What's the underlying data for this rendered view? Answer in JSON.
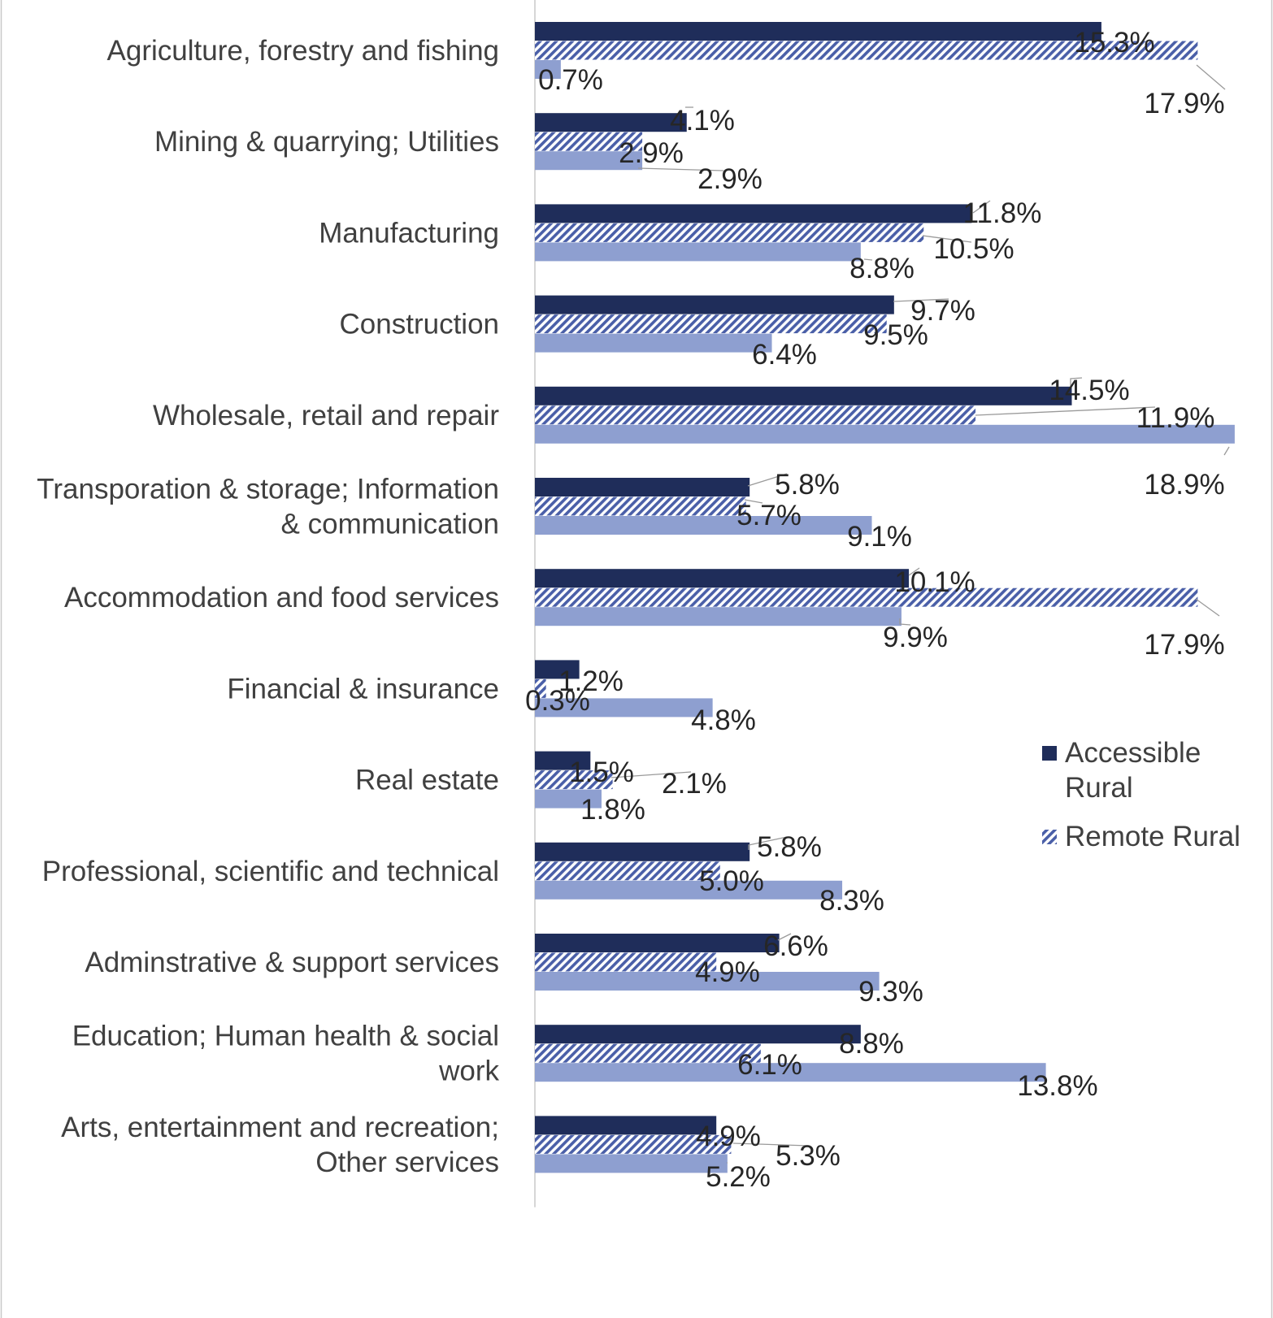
{
  "chart_data": {
    "type": "bar",
    "orientation": "horizontal",
    "categories": [
      "Agriculture, forestry and fishing",
      "Mining & quarrying; Utilities",
      "Manufacturing",
      "Construction",
      "Wholesale, retail and repair",
      "Transporation & storage; Information & communication",
      "Accommodation and food services",
      "Financial & insurance",
      "Real estate",
      "Professional, scientific and technical",
      "Adminstrative & support services",
      "Education; Human health & social work",
      "Arts, entertainment and recreation; Other services"
    ],
    "category_lines": [
      [
        "Agriculture, forestry and fishing"
      ],
      [
        "Mining & quarrying; Utilities"
      ],
      [
        "Manufacturing"
      ],
      [
        "Construction"
      ],
      [
        "Wholesale, retail and repair"
      ],
      [
        "Transporation & storage; Information",
        "& communication"
      ],
      [
        "Accommodation and food services"
      ],
      [
        "Financial & insurance"
      ],
      [
        "Real estate"
      ],
      [
        "Professional, scientific and technical"
      ],
      [
        "Adminstrative & support services"
      ],
      [
        "Education; Human health & social",
        "work"
      ],
      [
        "Arts, entertainment and recreation;",
        "Other services"
      ]
    ],
    "series": [
      {
        "name": "Accessible Rural",
        "color": "#1f2d5a",
        "pattern": "solid",
        "values": [
          15.3,
          4.1,
          11.8,
          9.7,
          14.5,
          5.8,
          10.1,
          1.2,
          1.5,
          5.8,
          6.6,
          8.8,
          4.9
        ],
        "labels": [
          "15.3%",
          "4.1%",
          "11.8%",
          "9.7%",
          "14.5%",
          "5.8%",
          "10.1%",
          "1.2%",
          "1.5%",
          "5.8%",
          "6.6%",
          "8.8%",
          "4.9%"
        ]
      },
      {
        "name": "Remote Rural",
        "color": "#4a5fa8",
        "pattern": "diagonal-hatch",
        "values": [
          17.9,
          2.9,
          10.5,
          9.5,
          11.9,
          5.7,
          17.9,
          0.3,
          2.1,
          5.0,
          4.9,
          6.1,
          5.3
        ],
        "labels": [
          "17.9%",
          "2.9%",
          "10.5%",
          "9.5%",
          "11.9%",
          "5.7%",
          "17.9%",
          "0.3%",
          "2.1%",
          "5.0%",
          "4.9%",
          "6.1%",
          "5.3%"
        ]
      },
      {
        "color": "#8e9fd0",
        "pattern": "solid",
        "values": [
          0.7,
          2.9,
          8.8,
          6.4,
          18.9,
          9.1,
          9.9,
          4.8,
          1.8,
          8.3,
          9.3,
          13.8,
          5.2
        ],
        "labels": [
          "0.7%",
          "2.9%",
          "8.8%",
          "6.4%",
          "18.9%",
          "9.1%",
          "9.9%",
          "4.8%",
          "1.8%",
          "8.3%",
          "9.3%",
          "13.8%",
          "5.2%"
        ]
      }
    ],
    "legend": {
      "position": "right",
      "entries": [
        {
          "lines": [
            "Accessible",
            "Rural"
          ],
          "series": 0
        },
        {
          "lines": [
            "Remote Rural"
          ],
          "series": 1
        }
      ]
    },
    "xlim": [
      0,
      19
    ],
    "gridlines": false,
    "x_axis_labels": false
  }
}
